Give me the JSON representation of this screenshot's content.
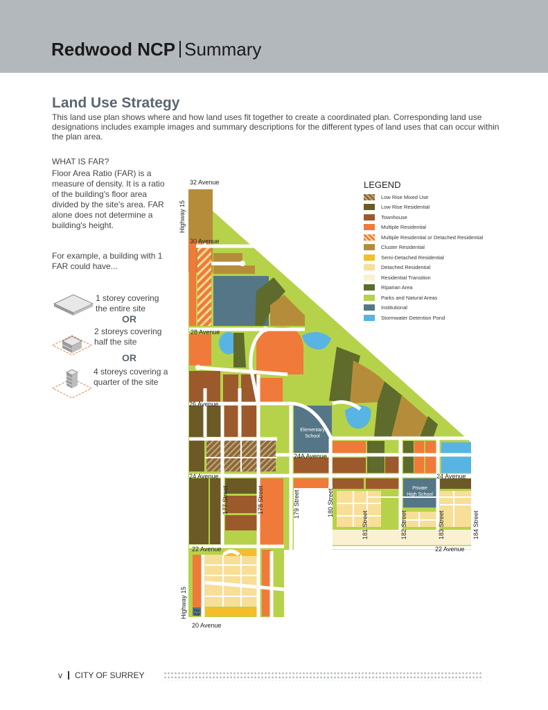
{
  "header": {
    "title_bold": "Redwood NCP",
    "title_rest": "Summary"
  },
  "section": {
    "heading": "Land Use Strategy",
    "intro": "This land use plan shows where and how land uses fit together to create a coordinated plan. Corresponding land use designations includes example images and summary descriptions for the different types of land uses that can occur within the plan area."
  },
  "far": {
    "title": "WHAT IS FAR?",
    "body": "Floor Area Ratio (FAR) is a measure of density. It is a ratio of the building's floor area divided by the site's area. FAR alone does not determine a building's height.",
    "example": "For example, a building with 1 FAR could have...",
    "options": [
      "1 storey covering the entire site",
      "2 storeys covering half the site",
      "4 storeys covering a quarter of the site"
    ],
    "or": "OR"
  },
  "legend": {
    "title": "LEGEND",
    "items": [
      {
        "label": "Low Rise Mixed Use",
        "color": "#8a6a3c"
      },
      {
        "label": "Low Rise Residential",
        "color": "#6b5a26"
      },
      {
        "label": "Townhouse",
        "color": "#9c5a2c"
      },
      {
        "label": "Multiple Residential",
        "color": "#f07a3a"
      },
      {
        "label": "Multiple Residential or Detached Residential",
        "color": "#f5a540"
      },
      {
        "label": "Cluster Residential",
        "color": "#b58d3a"
      },
      {
        "label": "Semi-Detached Residential",
        "color": "#f3bd2c"
      },
      {
        "label": "Detached Residential",
        "color": "#f7df98"
      },
      {
        "label": "Residential Transition",
        "color": "#faf0d2"
      },
      {
        "label": "Riparian Area",
        "color": "#5e6b2c"
      },
      {
        "label": "Parks and Natural Areas",
        "color": "#b6d24a"
      },
      {
        "label": "Institutional",
        "color": "#557686"
      },
      {
        "label": "Stormwater Detention Pond",
        "color": "#58b4e2"
      }
    ]
  },
  "map_labels": {
    "ave32": "32 Avenue",
    "ave30": "30 Avenue",
    "ave28": "28 Avenue",
    "ave26": "26 Avenue",
    "ave24a": "24A Avenue",
    "ave24_west": "24 Avenue",
    "ave24_east": "24 Avenue",
    "ave22_west": "22 Avenue",
    "ave22_east": "22 Avenue",
    "ave20": "20 Avenue",
    "hwy_north": "Highway 15",
    "hwy_south": "Highway 15",
    "st177": "177 Street",
    "st178": "178 Street",
    "st179": "179 Street",
    "st180": "180 Street",
    "st181": "181 Street",
    "st182": "182 Street",
    "st183": "183 Street",
    "st184": "184 Street",
    "elementary_1": "Elementary",
    "elementary_2": "School",
    "private_1": "Private",
    "private_2": "High School",
    "fire_1": "Fire",
    "fire_2": "Hall"
  },
  "footer": {
    "page": "v",
    "org": "CITY OF SURREY"
  }
}
